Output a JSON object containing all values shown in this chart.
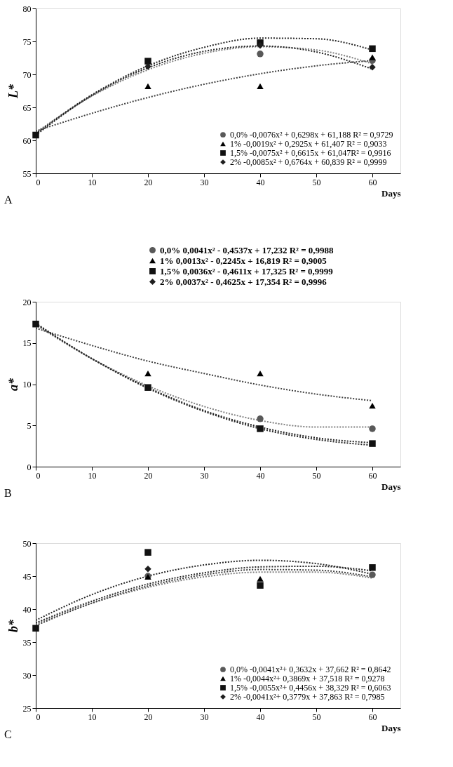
{
  "chart_data": [
    {
      "type": "scatter",
      "ylabel": "L*",
      "xlabel": "Days",
      "annotations": [
        "A"
      ],
      "xlim": [
        0,
        65
      ],
      "xticks": [
        0,
        10,
        20,
        30,
        40,
        50,
        60
      ],
      "ylim": [
        55,
        80
      ],
      "yticks": [
        55,
        60,
        65,
        70,
        75,
        80
      ],
      "grid": false,
      "legend": "bottom right",
      "line_style": "dotted",
      "x": [
        0,
        20,
        40,
        60
      ],
      "series": [
        {
          "name": "0,0% -0,0076x² + 0,6298x + 61,188 R² = 0,9729",
          "color": "#595959",
          "marker": "circle",
          "values": [
            null,
            null,
            73.1,
            72.1
          ]
        },
        {
          "name": "1% -0,0019x² + 0,2925x + 61,407 R² = 0,9033",
          "color": "#000000",
          "marker": "triangle",
          "values": [
            null,
            68.2,
            68.2,
            72.6
          ]
        },
        {
          "name": "1,5% -0,0075x² + 0,6615x + 61,047R² = 0,9916",
          "color": "#111111",
          "marker": "square",
          "values": [
            60.8,
            72.0,
            74.8,
            73.9
          ]
        },
        {
          "name": "2% -0,0085x² + 0,6764x + 60,839 R² = 0,9999",
          "color": "#1e1e1e",
          "marker": "diamond",
          "values": [
            null,
            71.2,
            74.4,
            71.1
          ]
        },
        {
          "type": "line",
          "color": "#808080",
          "x": [
            0,
            10,
            20,
            30,
            40,
            50,
            60
          ],
          "values": [
            61.2,
            66.7,
            70.7,
            73.2,
            74.2,
            73.7,
            71.6
          ]
        },
        {
          "type": "line",
          "color": "#404040",
          "x": [
            0,
            10,
            20,
            30,
            40,
            50,
            60
          ],
          "values": [
            61.4,
            64.1,
            66.5,
            68.5,
            70.1,
            71.3,
            72.1
          ]
        },
        {
          "type": "line",
          "color": "#262626",
          "x": [
            0,
            10,
            20,
            30,
            40,
            50,
            60
          ],
          "values": [
            61.0,
            66.9,
            71.3,
            74.1,
            75.5,
            75.4,
            73.7
          ]
        },
        {
          "type": "line",
          "color": "#262626",
          "x": [
            0,
            10,
            20,
            30,
            40,
            50,
            60
          ],
          "values": [
            60.8,
            66.8,
            71.0,
            73.5,
            74.3,
            73.4,
            70.8
          ]
        }
      ]
    },
    {
      "type": "scatter",
      "ylabel": "a*",
      "xlabel": "Days",
      "annotations": [
        "B"
      ],
      "xlim": [
        0,
        65
      ],
      "xticks": [
        0,
        10,
        20,
        30,
        40,
        50,
        60
      ],
      "ylim": [
        0,
        20
      ],
      "yticks": [
        0,
        5,
        10,
        15,
        20
      ],
      "grid": false,
      "legend": "top right",
      "line_style": "dotted",
      "x": [
        0,
        20,
        40,
        60
      ],
      "series": [
        {
          "name": "0,0% 0,0041x² - 0,4537x + 17,232 R² = 0,9988",
          "color": "#595959",
          "marker": "circle",
          "values": [
            null,
            null,
            5.8,
            4.6
          ]
        },
        {
          "name": "1% 0,0013x² - 0,2245x + 16,819 R² = 0,9005",
          "color": "#000000",
          "marker": "triangle",
          "values": [
            null,
            11.3,
            11.3,
            7.4
          ]
        },
        {
          "name": "1,5% 0,0036x² - 0,4611x + 17,325 R² = 0,9999",
          "color": "#111111",
          "marker": "square",
          "values": [
            17.3,
            9.6,
            4.6,
            2.8
          ]
        },
        {
          "name": "2% 0,0037x² - 0,4625x + 17,354 R² = 0,9996",
          "color": "#1e1e1e",
          "marker": "diamond",
          "values": [
            null,
            null,
            null,
            null
          ]
        },
        {
          "type": "line",
          "color": "#808080",
          "x": [
            0,
            10,
            20,
            30,
            40,
            50,
            60
          ],
          "values": [
            17.2,
            13.1,
            9.8,
            7.3,
            5.6,
            4.8,
            4.8
          ]
        },
        {
          "type": "line",
          "color": "#404040",
          "x": [
            0,
            10,
            20,
            30,
            40,
            50,
            60
          ],
          "values": [
            16.8,
            14.7,
            12.8,
            11.3,
            9.9,
            8.8,
            8.0
          ]
        },
        {
          "type": "line",
          "color": "#262626",
          "x": [
            0,
            10,
            20,
            30,
            40,
            50,
            60
          ],
          "values": [
            17.3,
            13.1,
            9.5,
            6.7,
            4.6,
            3.3,
            2.6
          ]
        },
        {
          "type": "line",
          "color": "#262626",
          "x": [
            0,
            10,
            20,
            30,
            40,
            50,
            60
          ],
          "values": [
            17.4,
            13.1,
            9.6,
            6.8,
            4.8,
            3.5,
            2.9
          ]
        }
      ]
    },
    {
      "type": "scatter",
      "ylabel": "b*",
      "xlabel": "Days",
      "annotations": [
        "C"
      ],
      "xlim": [
        0,
        65
      ],
      "xticks": [
        0,
        10,
        20,
        30,
        40,
        50,
        60
      ],
      "ylim": [
        25,
        50
      ],
      "yticks": [
        25,
        30,
        35,
        40,
        45,
        50
      ],
      "grid": false,
      "legend": "bottom right",
      "line_style": "dotted",
      "x": [
        0,
        20,
        40,
        60
      ],
      "series": [
        {
          "name": "0,0%  -0,0041x²+ 0,3632x + 37,662 R² = 0,8642",
          "color": "#595959",
          "marker": "circle",
          "values": [
            null,
            45.0,
            null,
            45.2
          ]
        },
        {
          "name": "1% -0,0044x²+ 0,3869x + 37,518 R² = 0,9278",
          "color": "#000000",
          "marker": "triangle",
          "values": [
            null,
            44.9,
            44.6,
            null
          ]
        },
        {
          "name": "1,5% -0,0055x²+ 0,4456x + 38,329 R² = 0,6063",
          "color": "#111111",
          "marker": "square",
          "values": [
            37.1,
            48.6,
            43.6,
            46.3
          ]
        },
        {
          "name": "2% -0,0041x²+ 0,3779x + 37,863 R² = 0,7985",
          "color": "#1e1e1e",
          "marker": "diamond",
          "values": [
            null,
            46.1,
            null,
            null
          ]
        },
        {
          "type": "line",
          "color": "#808080",
          "x": [
            0,
            10,
            20,
            30,
            40,
            50,
            60
          ],
          "values": [
            37.7,
            40.9,
            43.3,
            44.9,
            45.6,
            45.6,
            44.7
          ]
        },
        {
          "type": "line",
          "color": "#404040",
          "x": [
            0,
            10,
            20,
            30,
            40,
            50,
            60
          ],
          "values": [
            37.5,
            40.9,
            43.5,
            45.2,
            46.0,
            45.9,
            44.9
          ]
        },
        {
          "type": "line",
          "color": "#262626",
          "x": [
            0,
            10,
            20,
            30,
            40,
            50,
            60
          ],
          "values": [
            38.3,
            42.2,
            45.0,
            46.7,
            47.4,
            46.9,
            45.3
          ]
        },
        {
          "type": "line",
          "color": "#262626",
          "x": [
            0,
            10,
            20,
            30,
            40,
            50,
            60
          ],
          "values": [
            37.9,
            41.2,
            43.8,
            45.5,
            46.4,
            46.5,
            45.8
          ]
        }
      ]
    }
  ]
}
